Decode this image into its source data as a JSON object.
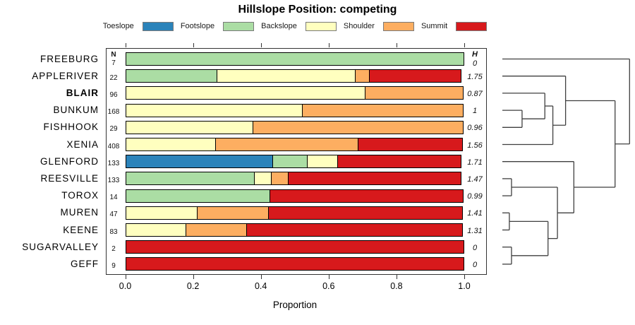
{
  "title": "Hillslope Position: competing",
  "xlabel": "Proportion",
  "n_header": "N",
  "h_header": "H",
  "legend": [
    {
      "label": "Toeslope",
      "color": "#2B83BA"
    },
    {
      "label": "Footslope",
      "color": "#ABDDA4"
    },
    {
      "label": "Backslope",
      "color": "#FFFFBF"
    },
    {
      "label": "Shoulder",
      "color": "#FDAE61"
    },
    {
      "label": "Summit",
      "color": "#D7191C"
    }
  ],
  "chart_data": {
    "type": "bar",
    "orientation": "horizontal-stacked",
    "xlim": [
      0,
      1
    ],
    "x_ticks": [
      0,
      0.2,
      0.4,
      0.6,
      0.8,
      1.0
    ],
    "grid": false,
    "categories": [
      "Toeslope",
      "Footslope",
      "Backslope",
      "Shoulder",
      "Summit"
    ],
    "colors": {
      "Toeslope": "#2B83BA",
      "Footslope": "#ABDDA4",
      "Backslope": "#FFFFBF",
      "Shoulder": "#FDAE61",
      "Summit": "#D7191C"
    },
    "rows": [
      {
        "name": "FREEBURG",
        "bold": false,
        "n": 7,
        "h": "0",
        "props": {
          "Footslope": 1.0
        }
      },
      {
        "name": "APPLERIVER",
        "bold": false,
        "n": 22,
        "h": "1.75",
        "props": {
          "Footslope": 0.273,
          "Backslope": 0.409,
          "Shoulder": 0.045,
          "Summit": 0.273
        }
      },
      {
        "name": "BLAIR",
        "bold": true,
        "n": 96,
        "h": "0.87",
        "props": {
          "Backslope": 0.708,
          "Shoulder": 0.292
        }
      },
      {
        "name": "BUNKUM",
        "bold": false,
        "n": 168,
        "h": "1",
        "props": {
          "Backslope": 0.524,
          "Shoulder": 0.476
        }
      },
      {
        "name": "FISHHOOK",
        "bold": false,
        "n": 29,
        "h": "0.96",
        "props": {
          "Backslope": 0.379,
          "Shoulder": 0.621
        }
      },
      {
        "name": "XENIA",
        "bold": false,
        "n": 408,
        "h": "1.56",
        "props": {
          "Backslope": 0.268,
          "Shoulder": 0.422,
          "Summit": 0.31
        }
      },
      {
        "name": "GLENFORD",
        "bold": false,
        "n": 133,
        "h": "1.71",
        "props": {
          "Toeslope": 0.436,
          "Footslope": 0.105,
          "Backslope": 0.091,
          "Summit": 0.368
        }
      },
      {
        "name": "REESVILLE",
        "bold": false,
        "n": 133,
        "h": "1.47",
        "props": {
          "Footslope": 0.383,
          "Backslope": 0.052,
          "Shoulder": 0.052,
          "Summit": 0.513
        }
      },
      {
        "name": "TOROX",
        "bold": false,
        "n": 14,
        "h": "0.99",
        "props": {
          "Footslope": 0.429,
          "Summit": 0.571
        }
      },
      {
        "name": "MUREN",
        "bold": false,
        "n": 47,
        "h": "1.41",
        "props": {
          "Backslope": 0.213,
          "Shoulder": 0.213,
          "Summit": 0.574
        }
      },
      {
        "name": "KEENE",
        "bold": false,
        "n": 83,
        "h": "1.31",
        "props": {
          "Backslope": 0.181,
          "Shoulder": 0.181,
          "Summit": 0.638
        }
      },
      {
        "name": "SUGARVALLEY",
        "bold": false,
        "n": 2,
        "h": "0",
        "props": {
          "Summit": 1.0
        }
      },
      {
        "name": "GEFF",
        "bold": false,
        "n": 9,
        "h": "0",
        "props": {
          "Summit": 1.0
        }
      }
    ],
    "dendrogram": {
      "leaf_order": [
        "FREEBURG",
        "APPLERIVER",
        "BLAIR",
        "BUNKUM",
        "FISHHOOK",
        "XENIA",
        "GLENFORD",
        "REESVILLE",
        "TOROX",
        "MUREN",
        "KEENE",
        "SUGARVALLEY",
        "GEFF"
      ],
      "merges": [
        {
          "id": "N1",
          "a": "BUNKUM",
          "b": "FISHHOOK",
          "h": 0.155
        },
        {
          "id": "N2",
          "a": "BLAIR",
          "b": "N1",
          "h": 0.334
        },
        {
          "id": "N3",
          "a": "N2",
          "b": "XENIA",
          "h": 0.397
        },
        {
          "id": "N4",
          "a": "APPLERIVER",
          "b": "N3",
          "h": 0.497
        },
        {
          "id": "N5",
          "a": "REESVILLE",
          "b": "TOROX",
          "h": 0.072
        },
        {
          "id": "N6",
          "a": "MUREN",
          "b": "KEENE",
          "h": 0.055
        },
        {
          "id": "N7",
          "a": "SUGARVALLEY",
          "b": "GEFF",
          "h": 0.072
        },
        {
          "id": "N8",
          "a": "N6",
          "b": "N7",
          "h": 0.359
        },
        {
          "id": "N9",
          "a": "N5",
          "b": "N8",
          "h": 0.433
        },
        {
          "id": "N10",
          "a": "GLENFORD",
          "b": "N9",
          "h": 0.562
        },
        {
          "id": "N11",
          "a": "N4",
          "b": "N10",
          "h": 0.886
        },
        {
          "id": "root",
          "a": "FREEBURG",
          "b": "N11",
          "h": 1.0
        }
      ]
    }
  }
}
